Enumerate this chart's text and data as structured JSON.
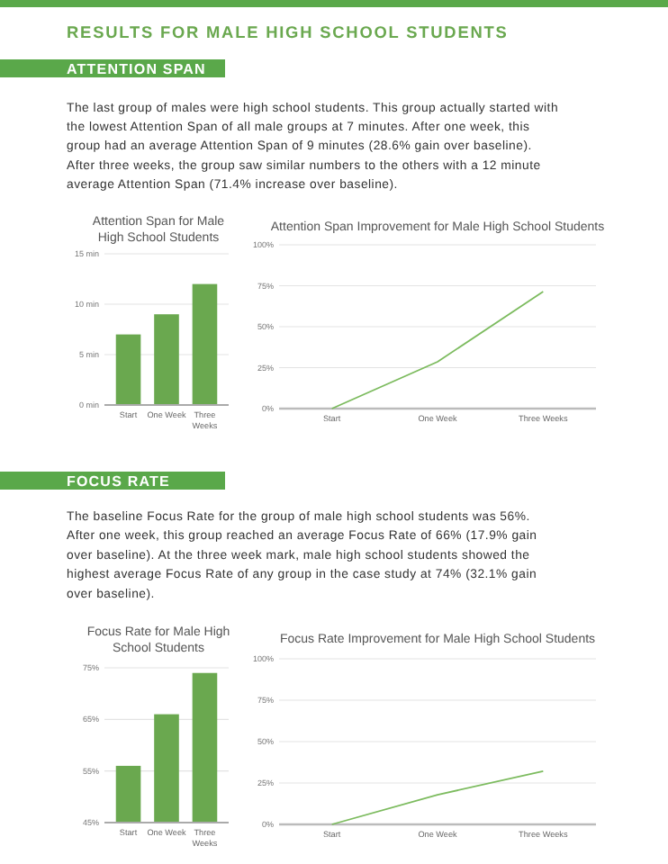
{
  "chart_data": [
    {
      "type": "other",
      "title": "RESULTS FOR MALE HIGH SCHOOL STUDENTS",
      "subtitle": "ATTENTION SPAN",
      "annotations": [
        "The last group of males were high school students. This group actually started with",
        "the lowest Attention Span of all male groups at 7 minutes. After one week, this",
        "group had an average Attention Span of 9 minutes (28.6% gain over baseline).",
        "After three weeks, the group saw similar numbers to the others with a 12 minute",
        "average Attention Span (71.4% increase over baseline)."
      ]
    },
    {
      "type": "bar",
      "title": "Attention Span for Male High School Students",
      "categories": [
        "Start",
        "One Week",
        "Three Weeks"
      ],
      "values": [
        7,
        9,
        12
      ],
      "color": "#6aa84f",
      "ylim": [
        0,
        15
      ],
      "yticks": [
        {
          "value": 0,
          "label": "0 min"
        },
        {
          "value": 5,
          "label": "5 min"
        },
        {
          "value": 10,
          "label": "10 min"
        },
        {
          "value": 15,
          "label": "15 min"
        }
      ],
      "grid": "y"
    },
    {
      "type": "line",
      "title": "Attention Span Improvement for Male High School Students",
      "categories": [
        "Start",
        "One Week",
        "Three Weeks"
      ],
      "values": [
        0,
        28.6,
        71.4
      ],
      "color": "#7cbb5e",
      "ylim": [
        0,
        100
      ],
      "yticks": [
        {
          "value": 0,
          "label": "0%"
        },
        {
          "value": 25,
          "label": "25%"
        },
        {
          "value": 50,
          "label": "50%"
        },
        {
          "value": 75,
          "label": "75%"
        },
        {
          "value": 100,
          "label": "100%"
        }
      ],
      "grid": "y"
    },
    {
      "type": "other",
      "subtitle": "FOCUS RATE",
      "annotations": [
        "The baseline Focus Rate for the group of male high school students was 56%.",
        "After one week, this group reached an average Focus Rate of 66% (17.9% gain",
        "over baseline). At the three week mark, male high school students showed the",
        "highest average Focus Rate of any group in the case study at 74% (32.1% gain",
        "over baseline)."
      ]
    },
    {
      "type": "bar",
      "title": "Focus Rate for Male High School Students",
      "categories": [
        "Start",
        "One Week",
        "Three Weeks"
      ],
      "values": [
        56,
        66,
        74
      ],
      "color": "#6aa84f",
      "ylim": [
        45,
        75
      ],
      "yticks": [
        {
          "value": 45,
          "label": "45%"
        },
        {
          "value": 55,
          "label": "55%"
        },
        {
          "value": 65,
          "label": "65%"
        },
        {
          "value": 75,
          "label": "75%"
        }
      ],
      "grid": "y"
    },
    {
      "type": "line",
      "title": "Focus Rate Improvement for Male High School Students",
      "categories": [
        "Start",
        "One Week",
        "Three Weeks"
      ],
      "values": [
        0,
        17.9,
        32.1
      ],
      "color": "#7cbb5e",
      "ylim": [
        0,
        100
      ],
      "yticks": [
        {
          "value": 0,
          "label": "0%"
        },
        {
          "value": 25,
          "label": "25%"
        },
        {
          "value": 50,
          "label": "50%"
        },
        {
          "value": 75,
          "label": "75%"
        },
        {
          "value": 100,
          "label": "100%"
        }
      ],
      "grid": "y"
    }
  ]
}
